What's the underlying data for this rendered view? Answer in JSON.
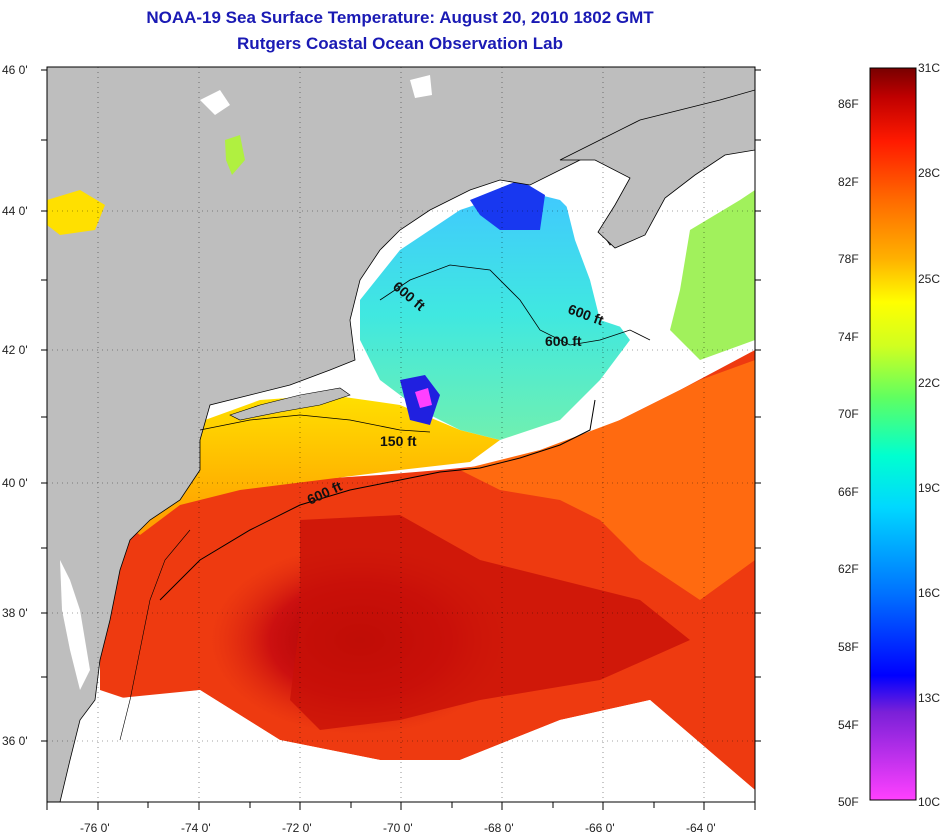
{
  "title": "NOAA-19 Sea Surface Temperature:  August 20, 2010 1802 GMT",
  "subtitle": "Rutgers Coastal Ocean Observation Lab",
  "map": {
    "lat_range": [
      35,
      46
    ],
    "lon_range": [
      -77,
      -63
    ],
    "lat_ticks": [
      "46 0'",
      "44 0'",
      "42 0'",
      "40 0'",
      "38 0'",
      "36 0'"
    ],
    "lon_ticks": [
      "-76 0'",
      "-74 0'",
      "-72 0'",
      "-70 0'",
      "-68 0'",
      "-66 0'",
      "-64 0'"
    ],
    "contour_labels": [
      {
        "text": "600 ft",
        "rotation": 40
      },
      {
        "text": "600 ft",
        "rotation": 20
      },
      {
        "text": "600 ft",
        "rotation": 0
      },
      {
        "text": "150 ft",
        "rotation": 0
      },
      {
        "text": "600 ft",
        "rotation": -25
      }
    ],
    "land_color": "#bebebe",
    "cloud_color": "#ffffff"
  },
  "colorbar": {
    "celsius": [
      "31C",
      "28C",
      "25C",
      "22C",
      "19C",
      "16C",
      "13C",
      "10C"
    ],
    "fahrenheit": [
      "86F",
      "82F",
      "78F",
      "74F",
      "70F",
      "66F",
      "62F",
      "58F",
      "54F",
      "50F"
    ],
    "colors": [
      "#ff40ff",
      "#7a20d8",
      "#0000ff",
      "#0070ff",
      "#00c8ff",
      "#00ffe0",
      "#40ff80",
      "#c0ff20",
      "#ffff00",
      "#ffb000",
      "#ff6a00",
      "#ff2000",
      "#c80000",
      "#780000"
    ]
  }
}
